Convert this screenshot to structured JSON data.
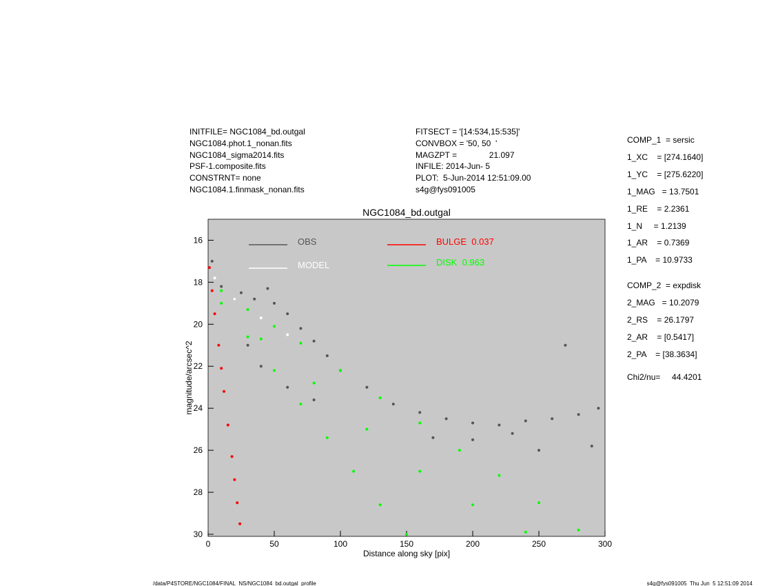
{
  "header": {
    "left": [
      "INITFILE= NGC1084_bd.outgal",
      "NGC1084.phot.1_nonan.fits",
      "NGC1084_sigma2014.fits",
      "PSF-1.composite.fits",
      "CONSTRNT= none",
      "NGC1084.1.finmask_nonan.fits"
    ],
    "middle": [
      "FITSECT = '[14:534,15:535]'",
      "CONVBOX = '50, 50  '",
      "MAGZPT =              21.097",
      "INFILE: 2014-Jun- 5",
      "PLOT:  5-Jun-2014 12:51:09.00",
      "s4g@fys091005"
    ]
  },
  "parameters": {
    "component_1": [
      "COMP_1  = sersic",
      "1_XC    = [274.1640]",
      "1_YC    = [275.6220]",
      "1_MAG   = 13.7501",
      "1_RE    = 2.2361",
      "1_N     = 1.2139",
      "1_AR    = 0.7369",
      "1_PA    = 10.9733"
    ],
    "component_2": [
      "COMP_2  = expdisk",
      "2_MAG   = 10.2079",
      "2_RS    = 26.1797",
      "2_AR    = [0.5417]",
      "2_PA    = [38.3634]"
    ],
    "chi2": "Chi2/nu=     44.4201"
  },
  "footer": {
    "left": "/data/P4STORE/NGC1084/FINAL_NS/NGC1084_bd.outgal_profile",
    "right": "s4g@fys091005  Thu Jun  5 12:51:09 2014"
  },
  "chart_data": {
    "type": "scatter",
    "title": "NGC1084_bd.outgal",
    "x_label": "Distance along sky [pix]",
    "y_label": "magnitude/arcsec^2",
    "xlim": [
      0,
      300
    ],
    "ylim": [
      30.1,
      15
    ],
    "xticks": [
      0,
      50,
      100,
      150,
      200,
      250,
      300
    ],
    "yticks": [
      16,
      18,
      20,
      22,
      24,
      26,
      28,
      30
    ],
    "background": "#c8c8c8",
    "series": [
      {
        "name": "OBS",
        "color": "#555555",
        "x": [
          3,
          10,
          20,
          25,
          35,
          45,
          50,
          60,
          70,
          80,
          90,
          100,
          120,
          140,
          160,
          180,
          200,
          220,
          240,
          260,
          280,
          295,
          270,
          30,
          40,
          60,
          80,
          200,
          250,
          230,
          170,
          290
        ],
        "y": [
          17,
          18.2,
          18.8,
          18.5,
          18.8,
          18.3,
          19,
          19.5,
          20.2,
          20.8,
          21.5,
          22.2,
          23,
          23.8,
          24.2,
          24.5,
          24.7,
          24.8,
          24.6,
          24.5,
          24.3,
          24,
          21,
          21,
          22,
          23,
          23.6,
          25.5,
          26,
          25.2,
          25.4,
          25.8
        ]
      },
      {
        "name": "MODEL",
        "color": "#ffffff",
        "x": [
          5,
          20,
          40,
          60
        ],
        "y": [
          17.8,
          18.8,
          19.7,
          20.5
        ]
      },
      {
        "name": "BULGE  0.037",
        "color": "#ff0000",
        "x": [
          1,
          3,
          5,
          8,
          10,
          12,
          15,
          18,
          20,
          22,
          24
        ],
        "y": [
          17.3,
          18.4,
          19.5,
          21,
          22.1,
          23.2,
          24.8,
          26.3,
          27.4,
          28.5,
          29.5
        ]
      },
      {
        "name": "DISK  0.963",
        "color": "#00ff00",
        "x": [
          10,
          30,
          50,
          70,
          100,
          130,
          160,
          190,
          220,
          250,
          280,
          10,
          30,
          50,
          70,
          90,
          110,
          130,
          150,
          40,
          80,
          120,
          160,
          200,
          240
        ],
        "y": [
          18.4,
          19.3,
          20.1,
          20.9,
          22.2,
          23.5,
          24.7,
          26,
          27.2,
          28.5,
          29.8,
          19,
          20.6,
          22.2,
          23.8,
          25.4,
          27,
          28.6,
          30,
          20.7,
          22.8,
          25,
          27,
          28.6,
          29.9
        ]
      }
    ]
  }
}
